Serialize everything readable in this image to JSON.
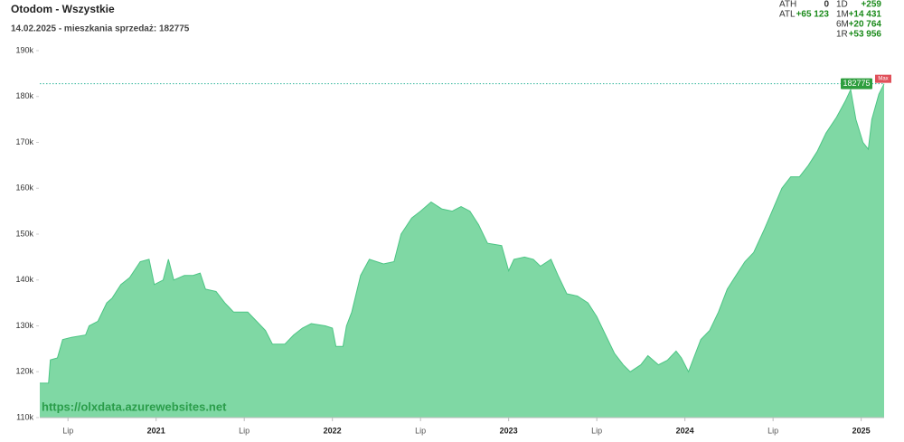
{
  "chart_data": {
    "type": "area",
    "title": "Otodom - Wszystkie",
    "subtitle": "14.02.2025 - mieszkania sprzedaż: 182775",
    "watermark": "https://olxdata.azurewebsites.net",
    "color": "#7fd8a4",
    "line_color": "#4cc584",
    "x": [
      2020.34,
      2020.39,
      2020.4,
      2020.44,
      2020.47,
      2020.52,
      2020.6,
      2020.62,
      2020.67,
      2020.72,
      2020.75,
      2020.8,
      2020.85,
      2020.91,
      2020.96,
      2020.99,
      2021.04,
      2021.07,
      2021.1,
      2021.16,
      2021.21,
      2021.25,
      2021.28,
      2021.34,
      2021.39,
      2021.44,
      2021.52,
      2021.57,
      2021.62,
      2021.66,
      2021.73,
      2021.78,
      2021.83,
      2021.88,
      2021.96,
      2022.0,
      2022.02,
      2022.06,
      2022.08,
      2022.11,
      2022.16,
      2022.21,
      2022.29,
      2022.35,
      2022.39,
      2022.45,
      2022.5,
      2022.56,
      2022.62,
      2022.68,
      2022.73,
      2022.78,
      2022.83,
      2022.88,
      2022.96,
      2023.0,
      2023.03,
      2023.09,
      2023.14,
      2023.18,
      2023.24,
      2023.28,
      2023.33,
      2023.39,
      2023.45,
      2023.5,
      2023.55,
      2023.6,
      2023.65,
      2023.69,
      2023.75,
      2023.79,
      2023.85,
      2023.9,
      2023.95,
      2023.98,
      2024.02,
      2024.05,
      2024.09,
      2024.14,
      2024.19,
      2024.24,
      2024.29,
      2024.34,
      2024.39,
      2024.45,
      2024.5,
      2024.55,
      2024.6,
      2024.65,
      2024.7,
      2024.75,
      2024.8,
      2024.86,
      2024.91,
      2024.94,
      2024.97,
      2025.01,
      2025.04,
      2025.06,
      2025.1,
      2025.13
    ],
    "values": [
      117500,
      117500,
      122600,
      123000,
      127000,
      127500,
      128000,
      130000,
      131000,
      135000,
      136000,
      139000,
      140500,
      144000,
      144500,
      139000,
      140000,
      144500,
      140000,
      141000,
      141000,
      141500,
      138000,
      137500,
      135000,
      133000,
      133000,
      131000,
      129000,
      126000,
      126000,
      128000,
      129500,
      130500,
      130000,
      129500,
      125500,
      125500,
      130000,
      133000,
      141000,
      144500,
      143500,
      144000,
      150000,
      153500,
      155000,
      157000,
      155500,
      155000,
      156000,
      155000,
      152000,
      148000,
      147500,
      142000,
      144500,
      145000,
      144500,
      143000,
      144500,
      141000,
      137000,
      136500,
      135000,
      132000,
      128000,
      124000,
      121500,
      120000,
      121500,
      123500,
      121500,
      122500,
      124500,
      123000,
      120000,
      123000,
      127000,
      129000,
      133000,
      138000,
      141000,
      144000,
      146000,
      151000,
      155500,
      160000,
      162500,
      162500,
      165000,
      168000,
      172000,
      175500,
      179000,
      181500,
      175000,
      170000,
      168500,
      175000,
      180500,
      182775
    ],
    "last_value": 182775,
    "max_label": "Max",
    "xlim": [
      2020.34,
      2025.13
    ],
    "xticks": [
      {
        "value": 2020.5,
        "label": "Lip"
      },
      {
        "value": 2021,
        "label": "2021"
      },
      {
        "value": 2021.5,
        "label": "Lip"
      },
      {
        "value": 2022,
        "label": "2022"
      },
      {
        "value": 2022.5,
        "label": "Lip"
      },
      {
        "value": 2023,
        "label": "2023"
      },
      {
        "value": 2023.5,
        "label": "Lip"
      },
      {
        "value": 2024,
        "label": "2024"
      },
      {
        "value": 2024.5,
        "label": "Lip"
      },
      {
        "value": 2025,
        "label": "2025"
      }
    ],
    "ylim": [
      110000,
      190000
    ],
    "yticks": [
      {
        "value": 110000,
        "label": "110k"
      },
      {
        "value": 120000,
        "label": "120k"
      },
      {
        "value": 130000,
        "label": "130k"
      },
      {
        "value": 140000,
        "label": "140k"
      },
      {
        "value": 150000,
        "label": "150k"
      },
      {
        "value": 160000,
        "label": "160k"
      },
      {
        "value": 170000,
        "label": "170k"
      },
      {
        "value": 180000,
        "label": "180k"
      },
      {
        "value": 190000,
        "label": "190k"
      }
    ],
    "grid": false
  },
  "stats": [
    {
      "label": "ATH",
      "value": "0"
    },
    {
      "label": "1D",
      "value": "+259"
    },
    {
      "label": "ATL",
      "value": "+65 123"
    },
    {
      "label": "1M",
      "value": "+14 431"
    },
    {
      "label": "6M",
      "value": "+20 764"
    },
    {
      "label": "1R",
      "value": "+53 956"
    }
  ]
}
